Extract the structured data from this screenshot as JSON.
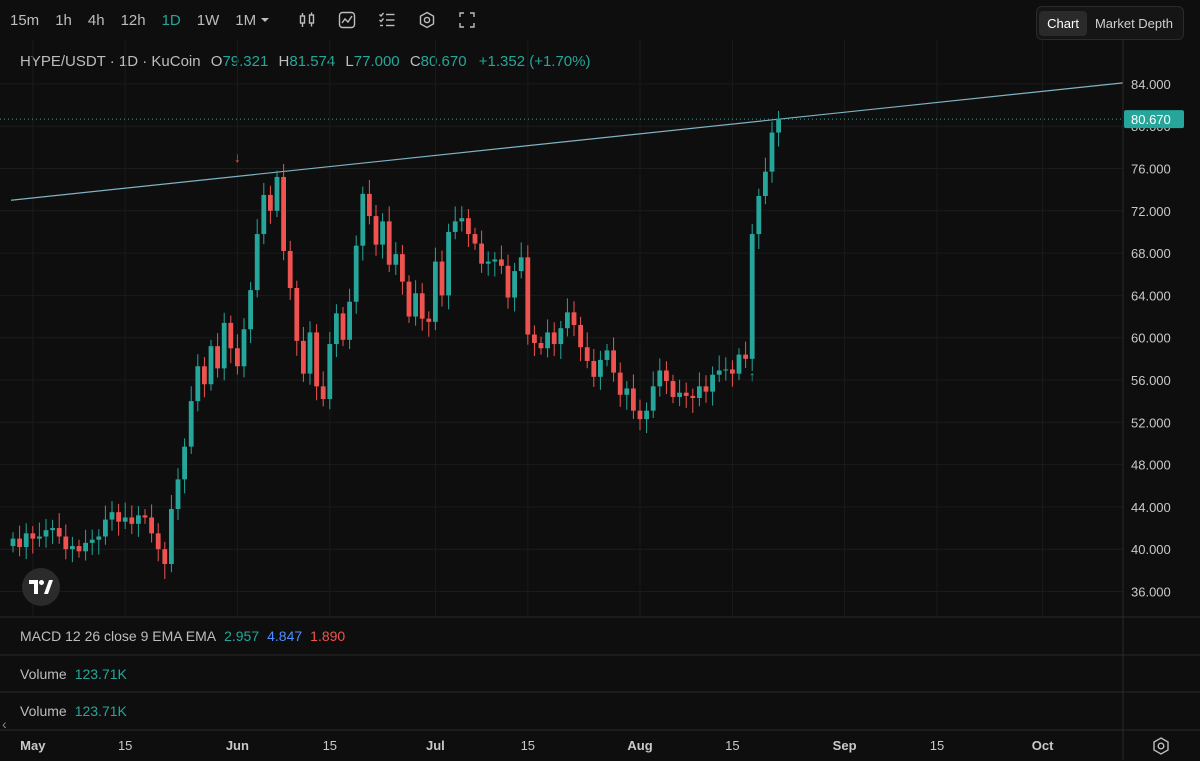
{
  "toolbar": {
    "timeframes": [
      "15m",
      "1h",
      "4h",
      "12h",
      "1D",
      "1W",
      "1M"
    ],
    "active": "1D",
    "icons": [
      "indicators-icon",
      "chart-type-icon",
      "strategy-icon",
      "settings-icon",
      "fullscreen-icon"
    ],
    "views": [
      "Chart",
      "Market Depth"
    ],
    "active_view": "Chart"
  },
  "legend": {
    "symbol": "HYPE/USDT · 1D · KuCoin",
    "o_label": "O",
    "o": "79.321",
    "h_label": "H",
    "h": "81.574",
    "l_label": "L",
    "l": "77.000",
    "c_label": "C",
    "c": "80.670",
    "change": "+1.352 (+1.70%)"
  },
  "macd": {
    "label": "MACD 12 26 close 9 EMA EMA",
    "v1": "2.957",
    "v2": "4.847",
    "v3": "1.890"
  },
  "volume1": {
    "label": "Volume",
    "value": "123.71K"
  },
  "volume2": {
    "label": "Volume",
    "value": "123.71K"
  },
  "chart_data": {
    "type": "candlestick",
    "up_color": "#26a69a",
    "down_color": "#ef5350",
    "trendline_color": "#7fb3c4",
    "price_axis": [
      "84.000",
      "80.000",
      "76.000",
      "72.000",
      "68.000",
      "64.000",
      "60.000",
      "56.000",
      "52.000",
      "48.000",
      "44.000",
      "40.000",
      "36.000"
    ],
    "last_price": "80.670",
    "date_axis": [
      "May",
      "15",
      "Jun",
      "15",
      "Jul",
      "15",
      "Aug",
      "15",
      "Sep",
      "15",
      "Oct"
    ],
    "markers": [
      {
        "date": "Jun 1",
        "symbol": "↓"
      },
      {
        "date": "Aug 18",
        "symbol": "↑"
      }
    ],
    "trendline": {
      "from": {
        "date": "Apr 23",
        "price": 73.0
      },
      "to": {
        "date": "Oct 10",
        "price": 84.1
      }
    },
    "closes": [
      41.0,
      40.2,
      41.5,
      41.0,
      41.2,
      41.8,
      42.0,
      41.2,
      40.0,
      40.3,
      39.8,
      40.6,
      40.9,
      41.2,
      42.8,
      43.5,
      42.6,
      43.0,
      42.4,
      43.2,
      43.0,
      41.5,
      40.0,
      38.6,
      43.8,
      46.6,
      49.7,
      54.0,
      57.3,
      55.6,
      59.2,
      57.1,
      61.4,
      59.0,
      57.3,
      60.8,
      64.5,
      69.8,
      73.5,
      72.0,
      75.2,
      68.2,
      64.7,
      59.7,
      56.6,
      60.5,
      55.4,
      54.2,
      59.4,
      62.3,
      59.8,
      63.4,
      68.7,
      73.6,
      71.5,
      68.8,
      71.0,
      66.9,
      67.9,
      65.3,
      62.0,
      64.2,
      61.8,
      61.5,
      67.2,
      64.0,
      70.0,
      71.0,
      71.3,
      69.8,
      68.9,
      67.0,
      67.2,
      67.4,
      66.8,
      63.8,
      66.3,
      67.6,
      60.3,
      59.5,
      59.0,
      60.5,
      59.4,
      60.9,
      62.4,
      61.2,
      59.1,
      57.8,
      56.3,
      57.9,
      58.8,
      56.7,
      54.6,
      55.2,
      53.1,
      52.3,
      53.1,
      55.4,
      56.9,
      55.9,
      54.4,
      54.8,
      54.5,
      54.3,
      55.4,
      54.9,
      56.5,
      56.9,
      57.0,
      56.6,
      58.4,
      58.0,
      69.8,
      73.4,
      75.7,
      79.4,
      80.67
    ]
  }
}
